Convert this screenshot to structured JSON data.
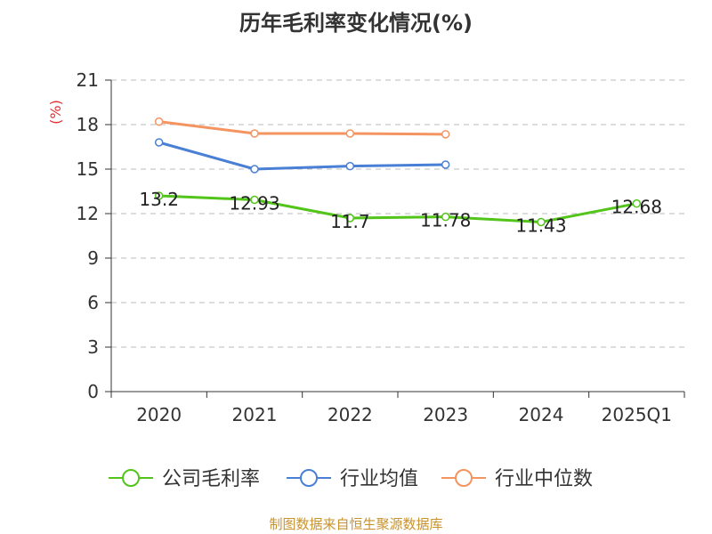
{
  "chart_data": {
    "type": "line",
    "title": "历年毛利率变化情况(%)",
    "y_unit": "(%)",
    "categories": [
      "2020",
      "2021",
      "2022",
      "2023",
      "2024",
      "2025Q1"
    ],
    "ylim": [
      0,
      21
    ],
    "yticks": [
      "0",
      "3",
      "6",
      "9",
      "12",
      "15",
      "18",
      "21"
    ],
    "grid": true,
    "legend_position": "bottom",
    "series": [
      {
        "name": "公司毛利率",
        "color": "#52c41a",
        "values": [
          13.2,
          12.93,
          11.7,
          11.78,
          11.43,
          12.68
        ],
        "labels": [
          "13.2",
          "12.93",
          "11.7",
          "11.78",
          "11.43",
          "12.68"
        ]
      },
      {
        "name": "行业均值",
        "color": "#4a7fd6",
        "values": [
          16.8,
          15.0,
          15.2,
          15.3,
          null,
          null
        ]
      },
      {
        "name": "行业中位数",
        "color": "#f39461",
        "values": [
          18.2,
          17.4,
          17.4,
          17.35,
          null,
          null
        ]
      }
    ]
  },
  "footer": {
    "source": "制图数据来自恒生聚源数据库"
  }
}
